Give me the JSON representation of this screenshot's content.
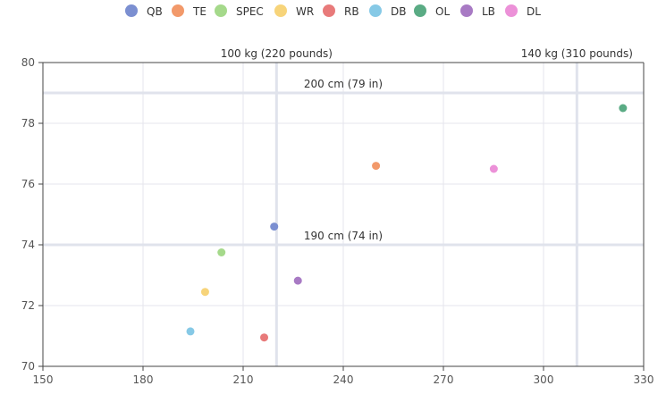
{
  "chart_data": {
    "type": "scatter",
    "xlim": [
      150,
      330
    ],
    "ylim": [
      70,
      80
    ],
    "x_ticks": [
      150,
      180,
      210,
      240,
      270,
      300,
      330
    ],
    "y_ticks": [
      70,
      72,
      74,
      76,
      78,
      80
    ],
    "grid": true,
    "legend_position": "top",
    "series": [
      {
        "name": "QB",
        "color": "#7b8fd1",
        "x": 219.3,
        "y": 74.6
      },
      {
        "name": "TE",
        "color": "#f2996a",
        "x": 249.8,
        "y": 76.6
      },
      {
        "name": "SPEC",
        "color": "#a5d98b",
        "x": 203.5,
        "y": 73.75
      },
      {
        "name": "WR",
        "color": "#f7d47a",
        "x": 198.6,
        "y": 72.45
      },
      {
        "name": "RB",
        "color": "#e87a7a",
        "x": 216.3,
        "y": 70.95
      },
      {
        "name": "DB",
        "color": "#86c9e6",
        "x": 194.2,
        "y": 71.15
      },
      {
        "name": "OL",
        "color": "#5aab84",
        "x": 323.8,
        "y": 78.5
      },
      {
        "name": "LB",
        "color": "#a87ac4",
        "x": 226.4,
        "y": 72.82
      },
      {
        "name": "DL",
        "color": "#ec91d8",
        "x": 285.1,
        "y": 76.5
      }
    ],
    "reference_lines": [
      {
        "axis": "x",
        "value": 220,
        "label": "100 kg (220 pounds)"
      },
      {
        "axis": "x",
        "value": 310,
        "label": "140 kg (310 pounds)"
      },
      {
        "axis": "y",
        "value": 79,
        "label": "200 cm (79 in)"
      },
      {
        "axis": "y",
        "value": 74,
        "label": "190 cm (74 in)"
      }
    ]
  }
}
